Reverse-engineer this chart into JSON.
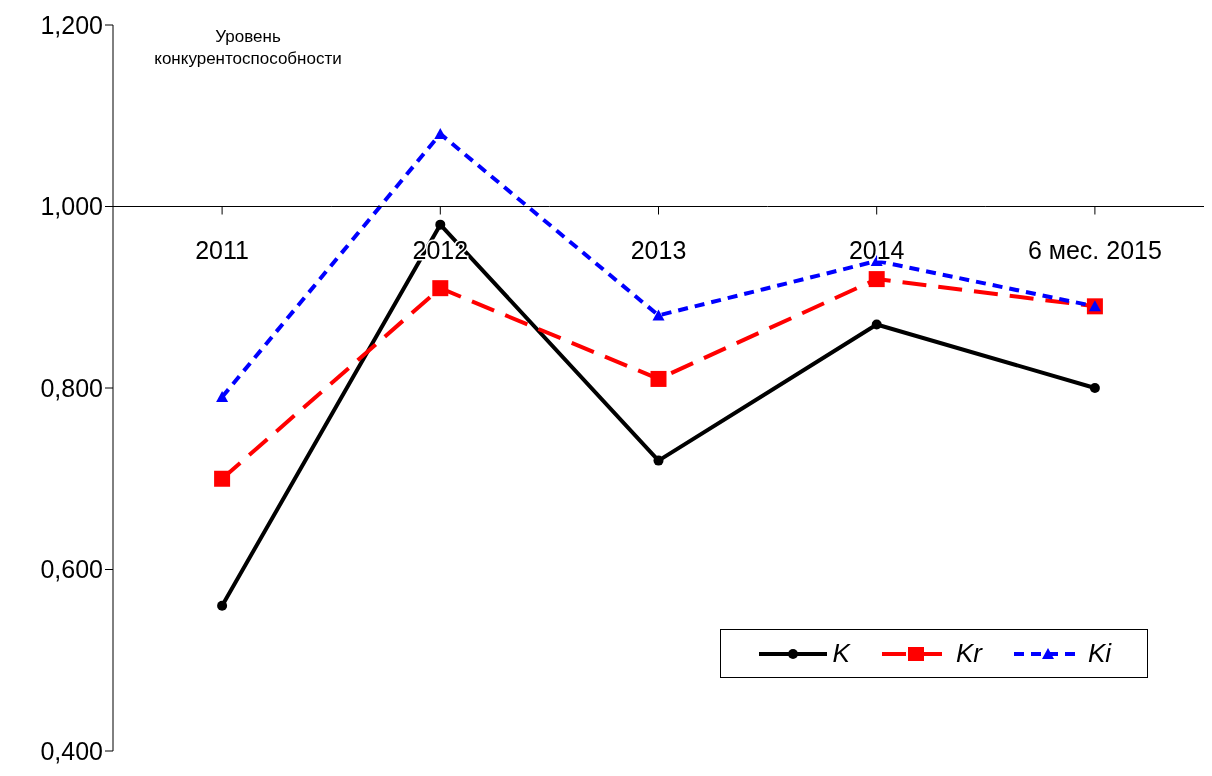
{
  "chart_data": {
    "type": "line",
    "ylabel": "Уровень\nконкурентоспособности",
    "categories": [
      "2011",
      "2012",
      "2013",
      "2014",
      "6 мес. 2015"
    ],
    "series": [
      {
        "name": "K",
        "color": "#000000",
        "marker": "circle",
        "line_style": "solid",
        "values": [
          0.56,
          0.98,
          0.72,
          0.87,
          0.8
        ]
      },
      {
        "name": "Kr",
        "color": "#ff0000",
        "marker": "square",
        "line_style": "dashed",
        "values": [
          0.7,
          0.91,
          0.81,
          0.92,
          0.89
        ]
      },
      {
        "name": "Ki",
        "color": "#0000ff",
        "marker": "triangle",
        "line_style": "dotted",
        "values": [
          0.79,
          1.08,
          0.88,
          0.94,
          0.89
        ]
      }
    ],
    "ylim": [
      0.4,
      1.2
    ],
    "yticks": [
      {
        "value": 0.4,
        "label": "0,400"
      },
      {
        "value": 0.6,
        "label": "0,600"
      },
      {
        "value": 0.8,
        "label": "0,800"
      },
      {
        "value": 1.0,
        "label": "1,000"
      },
      {
        "value": 1.2,
        "label": "1,200"
      }
    ],
    "grid": false,
    "legend": "bottom right"
  }
}
